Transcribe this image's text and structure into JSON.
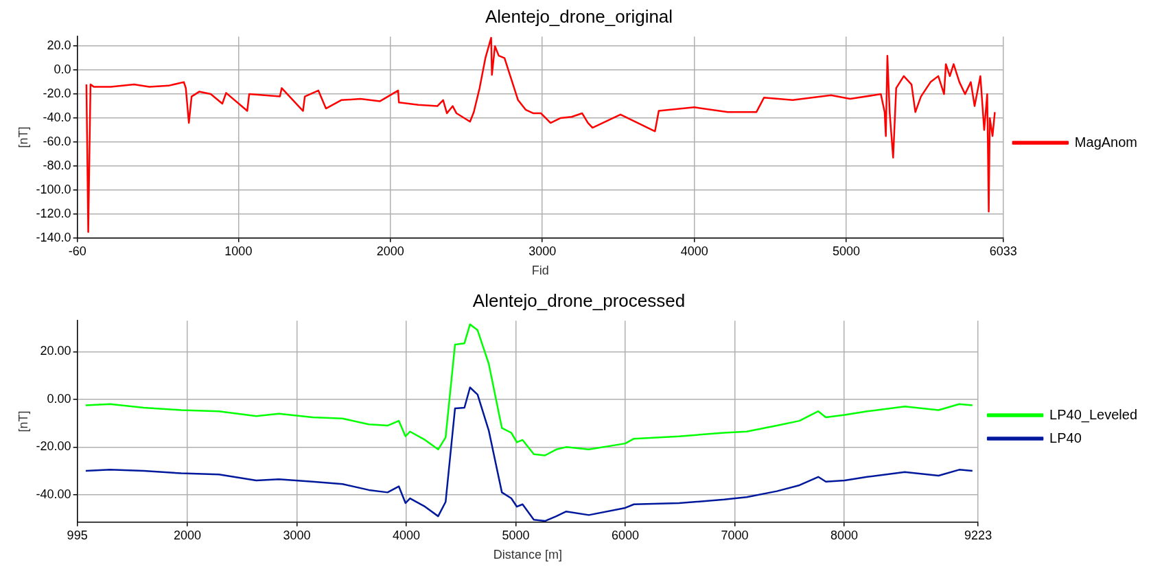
{
  "chart_data": [
    {
      "type": "line",
      "title": "Alentejo_drone_original",
      "xlabel": "Fid",
      "ylabel": "[nT]",
      "xlim": [
        -60,
        6033
      ],
      "xticks": [
        -60,
        1000,
        2000,
        3000,
        4000,
        5000,
        6033
      ],
      "ylim": [
        -140,
        28
      ],
      "yticks": [
        {
          "value": -140,
          "label": "-140.0"
        },
        {
          "value": -120,
          "label": "-120.0"
        },
        {
          "value": -100,
          "label": "-100.0"
        },
        {
          "value": -80,
          "label": "-80.0"
        },
        {
          "value": -60,
          "label": "-60.0"
        },
        {
          "value": -40,
          "label": "-40.0"
        },
        {
          "value": -20,
          "label": "-20.0"
        },
        {
          "value": 0,
          "label": "0.0"
        },
        {
          "value": 20,
          "label": "20.0"
        }
      ],
      "grid": true,
      "legend": "right",
      "marker": "none",
      "line_style": "solid",
      "series": [
        {
          "name": "MagAnom",
          "color": "#ff0000",
          "x": [
            0,
            12,
            20,
            27,
            50,
            161,
            313,
            414,
            540,
            641,
            654,
            674,
            692,
            742,
            818,
            894,
            919,
            1058,
            1071,
            1273,
            1285,
            1425,
            1437,
            1526,
            1576,
            1677,
            1803,
            1930,
            2051,
            2056,
            2183,
            2309,
            2347,
            2372,
            2410,
            2435,
            2524,
            2549,
            2587,
            2625,
            2663,
            2668,
            2688,
            2713,
            2751,
            2789,
            2840,
            2890,
            2941,
            2991,
            3054,
            3118,
            3193,
            3262,
            3300,
            3330,
            3514,
            3741,
            3766,
            4000,
            4219,
            4408,
            4458,
            4647,
            4899,
            5025,
            5227,
            5252,
            5260,
            5270,
            5285,
            5308,
            5328,
            5378,
            5429,
            5454,
            5491,
            5554,
            5605,
            5643,
            5655,
            5681,
            5706,
            5744,
            5781,
            5819,
            5844,
            5882,
            5907,
            5927,
            5937,
            5944,
            5962,
            5977
          ],
          "values": [
            -12,
            -135,
            -68,
            -12,
            -14,
            -14,
            -12,
            -14,
            -13,
            -10,
            -15,
            -44,
            -22,
            -18,
            -20,
            -28,
            -19,
            -34,
            -20,
            -22,
            -15,
            -34,
            -22,
            -17,
            -32,
            -25,
            -24,
            -26,
            -17,
            -27,
            -29,
            -30,
            -25,
            -36,
            -30,
            -36,
            -43,
            -35,
            -15,
            10,
            27,
            -4,
            20,
            12,
            10,
            -5,
            -25,
            -33,
            -36,
            -36,
            -44,
            -40,
            -39,
            -36,
            -44,
            -48,
            -37,
            -51,
            -34,
            -31,
            -35,
            -35,
            -23,
            -25,
            -21,
            -24,
            -20,
            -35,
            -55,
            12,
            -35,
            -73,
            -15,
            -5,
            -12,
            -35,
            -22,
            -10,
            -5,
            -20,
            5,
            -5,
            5,
            -10,
            -20,
            -10,
            -30,
            -5,
            -50,
            -20,
            -118,
            -40,
            -55,
            -35
          ]
        }
      ]
    },
    {
      "type": "line",
      "title": "Alentejo_drone_processed",
      "xlabel": "Distance [m]",
      "ylabel": "[nT]",
      "xlim": [
        995,
        9223
      ],
      "xticks": [
        995,
        2000,
        3000,
        4000,
        5000,
        6000,
        7000,
        8000,
        9223
      ],
      "ylim": [
        -51.5,
        33
      ],
      "yticks": [
        {
          "value": -40,
          "label": "-40.00"
        },
        {
          "value": -20,
          "label": "-20.00"
        },
        {
          "value": 0,
          "label": "0.00"
        },
        {
          "value": 20,
          "label": "20.00"
        }
      ],
      "grid": true,
      "legend": "right",
      "marker": "none",
      "line_style": "solid",
      "series": [
        {
          "name": "LP40_Leveled",
          "color": "#00ff00",
          "x": [
            1072,
            1294,
            1603,
            1945,
            2288,
            2630,
            2836,
            3144,
            3418,
            3658,
            3829,
            3932,
            3993,
            4034,
            4171,
            4291,
            4359,
            4445,
            4531,
            4582,
            4651,
            4753,
            4873,
            4959,
            5010,
            5062,
            5165,
            5267,
            5370,
            5461,
            5667,
            6000,
            6079,
            6491,
            6904,
            7110,
            7385,
            7591,
            7763,
            7832,
            8003,
            8209,
            8553,
            8862,
            9051,
            9171
          ],
          "values": [
            -2.5,
            -2,
            -3.5,
            -4.5,
            -5,
            -7,
            -6,
            -7.5,
            -8,
            -10.5,
            -11,
            -9,
            -15.5,
            -13.5,
            -17,
            -21,
            -16,
            23,
            23.5,
            31.5,
            29,
            15,
            -12,
            -14,
            -18,
            -17,
            -23,
            -23.5,
            -21,
            -20,
            -21,
            -18.5,
            -16.5,
            -15.5,
            -14,
            -13.5,
            -11,
            -9,
            -5,
            -7.5,
            -6.5,
            -5,
            -3,
            -4.5,
            -2,
            -2.5
          ]
        },
        {
          "name": "LP40",
          "color": "#00189c",
          "x": [
            1072,
            1294,
            1603,
            1945,
            2288,
            2630,
            2836,
            3144,
            3418,
            3658,
            3829,
            3932,
            3993,
            4034,
            4171,
            4291,
            4359,
            4445,
            4531,
            4582,
            4651,
            4753,
            4873,
            4959,
            5010,
            5062,
            5165,
            5267,
            5370,
            5461,
            5667,
            6000,
            6079,
            6491,
            6904,
            7110,
            7385,
            7591,
            7763,
            7832,
            8003,
            8209,
            8553,
            8862,
            9051,
            9171
          ],
          "values": [
            -30,
            -29.5,
            -30,
            -31,
            -31.5,
            -34,
            -33.5,
            -34.5,
            -35.5,
            -38,
            -39,
            -36.5,
            -43.5,
            -41.5,
            -45,
            -49,
            -43,
            -3.8,
            -3.5,
            5,
            2,
            -13,
            -39,
            -41.5,
            -45,
            -44,
            -50.5,
            -51,
            -49,
            -47,
            -48.5,
            -45.5,
            -44,
            -43.5,
            -42,
            -41,
            -38.5,
            -36,
            -32.5,
            -34.5,
            -34,
            -32.5,
            -30.5,
            -32,
            -29.5,
            -30
          ]
        }
      ]
    }
  ]
}
